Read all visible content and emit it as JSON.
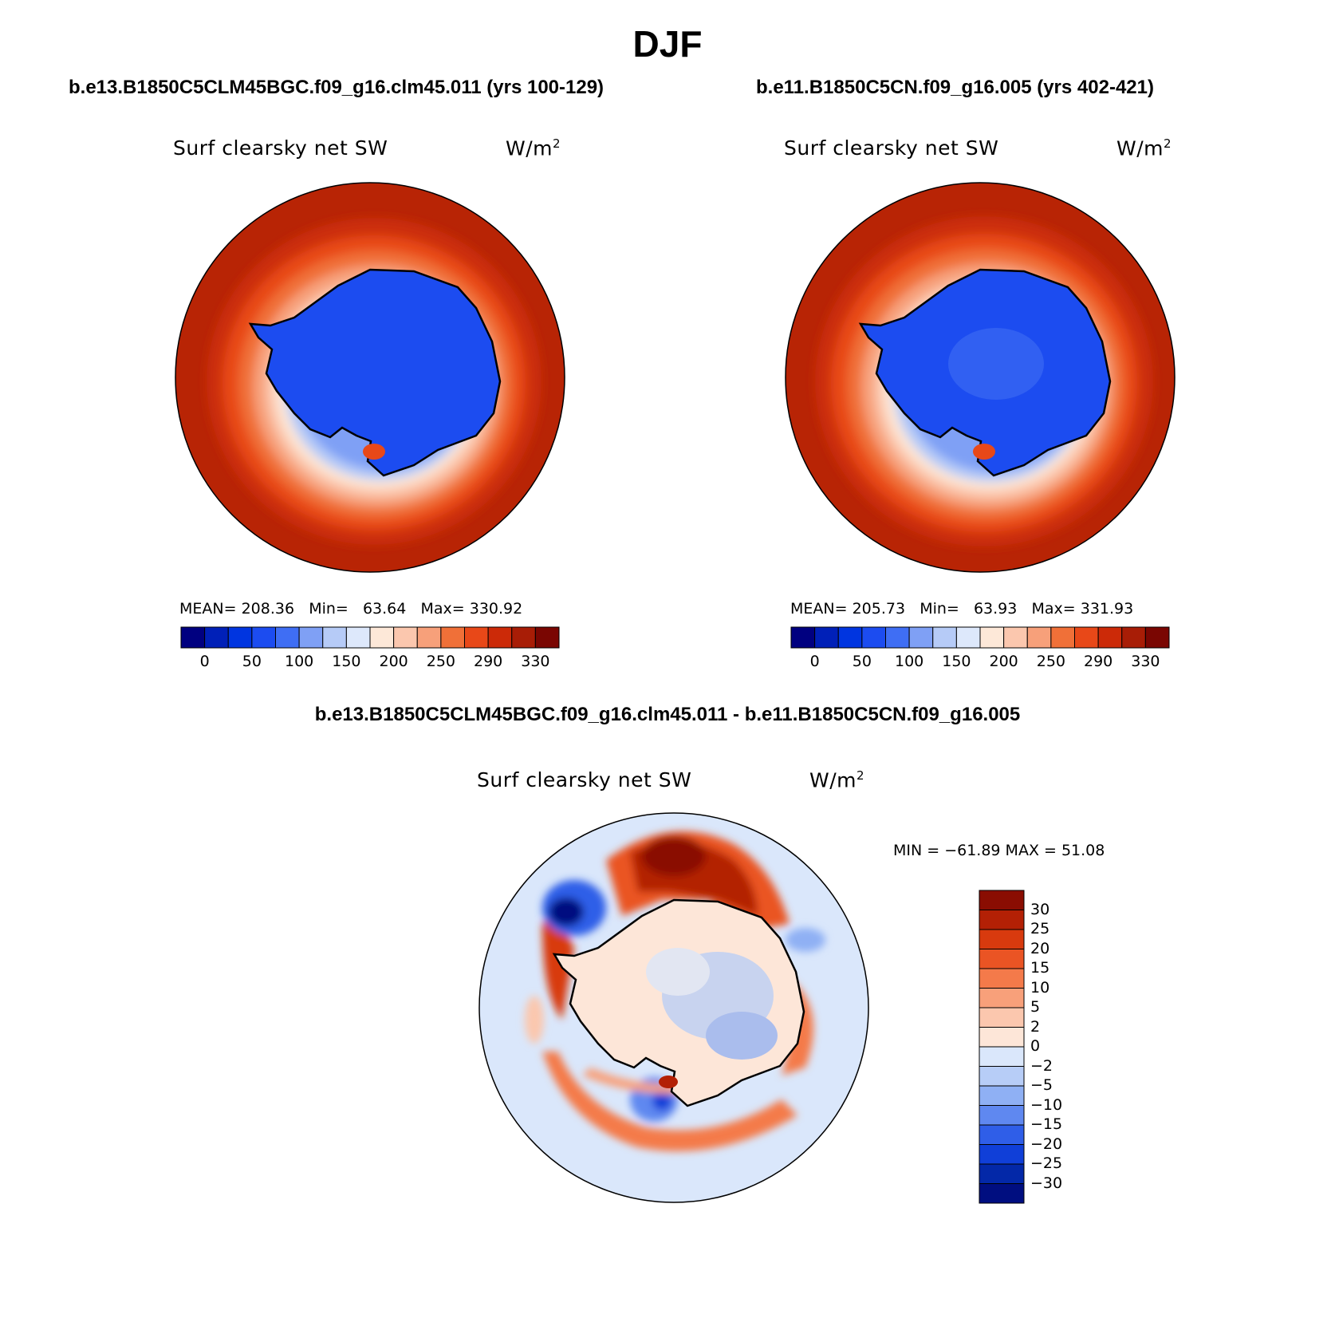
{
  "title": "DJF",
  "panels": [
    {
      "case": "b.e13.B1850C5CLM45BGC.f09_g16.clm45.011 (yrs 100-129)",
      "variable": "Surf clearsky net SW",
      "units": "W/m",
      "units_sup": "2",
      "mean_label": "MEAN=",
      "mean": "208.36",
      "min_label": "Min=",
      "min": "63.64",
      "max_label": "Max=",
      "max": "330.92"
    },
    {
      "case": "b.e11.B1850C5CN.f09_g16.005 (yrs 402-421)",
      "variable": "Surf clearsky net SW",
      "units": "W/m",
      "units_sup": "2",
      "mean_label": "MEAN=",
      "mean": "205.73",
      "min_label": "Min=",
      "min": "63.93",
      "max_label": "Max=",
      "max": "331.93"
    }
  ],
  "abs_colorbar": {
    "labels": [
      "0",
      "50",
      "100",
      "150",
      "200",
      "250",
      "290",
      "330"
    ],
    "colors": [
      "#000080",
      "#0020b8",
      "#0035e0",
      "#1c4cf0",
      "#3f6ef4",
      "#7fa0f5",
      "#b6cbf7",
      "#dde8fb",
      "#fde8d8",
      "#fbc7ae",
      "#f7a07a",
      "#f07038",
      "#e84818",
      "#cc2a08",
      "#a81d06",
      "#7a0602"
    ]
  },
  "diff": {
    "title": "b.e13.B1850C5CLM45BGC.f09_g16.clm45.011 - b.e11.B1850C5CN.f09_g16.005",
    "variable": "Surf clearsky net SW",
    "units": "W/m",
    "units_sup": "2",
    "minmax_text": "MIN = −61.89 MAX =   51.08",
    "colorbar_labels": [
      "30",
      "25",
      "20",
      "15",
      "10",
      "5",
      "2",
      "0",
      "−2",
      "−5",
      "−10",
      "−15",
      "−20",
      "−25",
      "−30"
    ],
    "colorbar_colors": [
      "#8a0d02",
      "#b32005",
      "#d83a0e",
      "#ea5424",
      "#f47a4a",
      "#f8a07a",
      "#fbc7ae",
      "#fde6d8",
      "#dae7fb",
      "#b7cdf7",
      "#8fb0f4",
      "#5f88f0",
      "#2f5ee8",
      "#103fd8",
      "#0328a8",
      "#000e80"
    ]
  }
}
